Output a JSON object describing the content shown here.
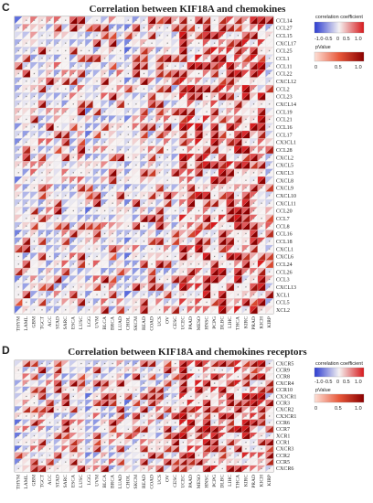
{
  "chart_data": [
    {
      "panel": "C",
      "type": "heatmap",
      "title": "Correlation between KIF18A and chemokines",
      "legend": {
        "correlation_label": "correlation coefficient",
        "correlation_ticks": [
          "-1.0",
          "-0.5",
          "0",
          "0.5",
          "1.0"
        ],
        "correlation_range": [
          -1,
          1
        ],
        "pvalue_label": "pValue",
        "pvalue_ticks": [
          "0",
          "0.5",
          "1.0"
        ],
        "pvalue_range": [
          0,
          1
        ]
      },
      "rows": [
        "CCL14",
        "CCL27",
        "CCL15",
        "CXCL17",
        "CCL25",
        "CCL1",
        "CCL11",
        "CCL22",
        "CXCL12",
        "CCL2",
        "CCL23",
        "CXCL14",
        "CCL19",
        "CCL21",
        "CCL16",
        "CCL17",
        "CX3CL1",
        "CCL28",
        "CXCL2",
        "CXCL5",
        "CXCL3",
        "CXCL8",
        "CXCL9",
        "CXCL10",
        "CXCL11",
        "CCL20",
        "CCL7",
        "CCL8",
        "CCL16",
        "CCL18",
        "CXCL1",
        "CXCL6",
        "CCL24",
        "CCL26",
        "CCL3",
        "CXCL13",
        "XCL1",
        "CCL5",
        "XCL2"
      ],
      "columns": [
        "THYM",
        "LAML",
        "GBM",
        "TGCT",
        "ACC",
        "STAD",
        "SARC",
        "ESCA",
        "LUSC",
        "LGG",
        "UVM",
        "BLCA",
        "BRCA",
        "LUAD",
        "CHOL",
        "SKCM",
        "READ",
        "COAD",
        "UCS",
        "OV",
        "CESC",
        "UCEC",
        "PAAD",
        "MESO",
        "HNSC",
        "PCPG",
        "DLBC",
        "LIHC",
        "THCA",
        "KIRC",
        "PRAD",
        "KICH",
        "KIRP"
      ]
    },
    {
      "panel": "D",
      "type": "heatmap",
      "title": "Correlation between KIF18A and chemokines receptors",
      "legend": {
        "correlation_label": "correlation coefficient",
        "correlation_ticks": [
          "-1.0",
          "-0.5",
          "0",
          "0.5",
          "1.0"
        ],
        "correlation_range": [
          -1,
          1
        ],
        "pvalue_label": "pValue",
        "pvalue_ticks": [
          "0",
          "0.5",
          "1.0"
        ],
        "pvalue_range": [
          0,
          1
        ]
      },
      "rows": [
        "CXCR5",
        "CCR9",
        "CCR8",
        "CXCR4",
        "CCR10",
        "CX3CR1",
        "CCR3",
        "CXCR2",
        "CX3CR1",
        "CCR6",
        "CCR7",
        "XCR1",
        "CCR1",
        "CXCR3",
        "CCR2",
        "CCR5",
        "CXCR6"
      ],
      "columns": [
        "THYM",
        "LAML",
        "GBM",
        "TGCT",
        "ACC",
        "STAD",
        "SARC",
        "ESCA",
        "LUSC",
        "LGG",
        "UVM",
        "BLCA",
        "BRCA",
        "LUAD",
        "CHOL",
        "SKCM",
        "READ",
        "COAD",
        "UCS",
        "OV",
        "CESC",
        "UCEC",
        "PAAD",
        "MESO",
        "HNSC",
        "PCPG",
        "DLBC",
        "LIHC",
        "THCA",
        "KIRC",
        "PRAD",
        "KICH",
        "KIRP"
      ]
    }
  ],
  "colors": {
    "negative": "#3b4cc0",
    "neutral": "#f7f4f4",
    "positive": "#d73027",
    "strong": "#8b0000",
    "grid": "#cfcfcf",
    "dot": "#888888"
  }
}
